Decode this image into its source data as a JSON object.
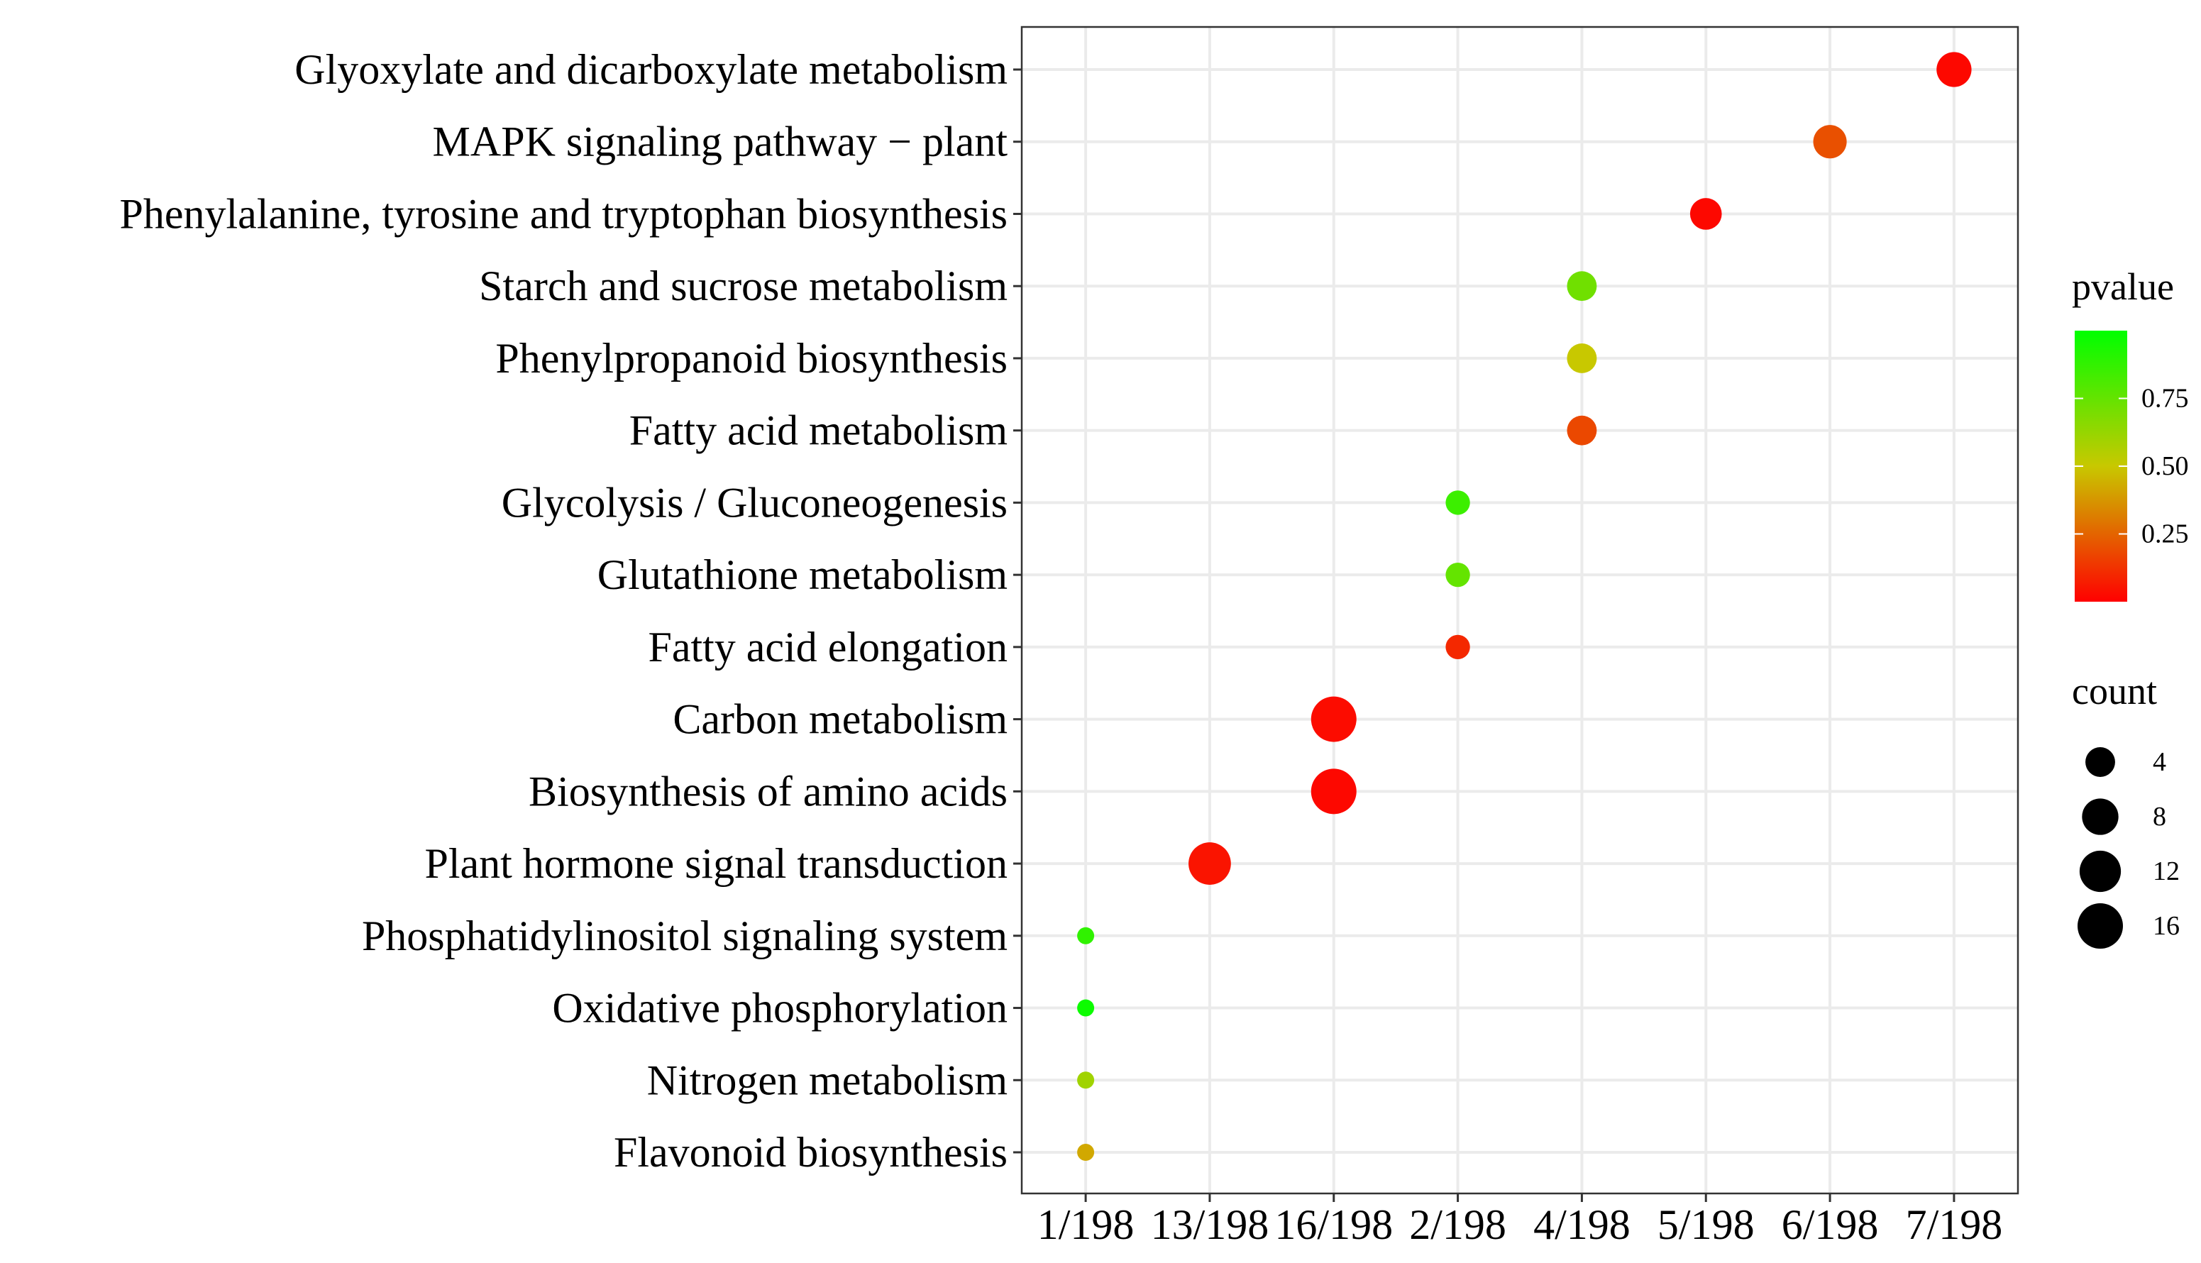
{
  "chart_data": {
    "type": "scatter",
    "x_axis": {
      "type": "categorical",
      "categories": [
        "1/198",
        "13/198",
        "16/198",
        "2/198",
        "4/198",
        "5/198",
        "6/198",
        "7/198"
      ]
    },
    "y_axis": {
      "type": "categorical",
      "categories_top_to_bottom": [
        "Glyoxylate and dicarboxylate metabolism",
        "MAPK signaling pathway − plant",
        "Phenylalanine, tyrosine and tryptophan biosynthesis",
        "Starch and sucrose metabolism",
        "Phenylpropanoid biosynthesis",
        "Fatty acid metabolism",
        "Glycolysis / Gluconeogenesis",
        "Glutathione metabolism",
        "Fatty acid elongation",
        "Carbon metabolism",
        "Biosynthesis of amino acids",
        "Plant hormone signal transduction",
        "Phosphatidylinositol signaling system",
        "Oxidative phosphorylation",
        "Nitrogen metabolism",
        "Flavonoid biosynthesis"
      ]
    },
    "grid": true,
    "points": [
      {
        "term": "Glyoxylate and dicarboxylate metabolism",
        "x": "7/198",
        "count": 7,
        "pvalue": 0.02
      },
      {
        "term": "MAPK signaling pathway − plant",
        "x": "6/198",
        "count": 6,
        "pvalue": 0.2
      },
      {
        "term": "Phenylalanine, tyrosine and tryptophan biosynthesis",
        "x": "5/198",
        "count": 5,
        "pvalue": 0.02
      },
      {
        "term": "Starch and sucrose metabolism",
        "x": "4/198",
        "count": 4,
        "pvalue": 0.72
      },
      {
        "term": "Phenylpropanoid biosynthesis",
        "x": "4/198",
        "count": 4,
        "pvalue": 0.5
      },
      {
        "term": "Fatty acid metabolism",
        "x": "4/198",
        "count": 4,
        "pvalue": 0.18
      },
      {
        "term": "Glycolysis / Gluconeogenesis",
        "x": "2/198",
        "count": 2,
        "pvalue": 0.85
      },
      {
        "term": "Glutathione metabolism",
        "x": "2/198",
        "count": 2,
        "pvalue": 0.75
      },
      {
        "term": "Fatty acid elongation",
        "x": "2/198",
        "count": 2,
        "pvalue": 0.1
      },
      {
        "term": "Carbon metabolism",
        "x": "16/198",
        "count": 16,
        "pvalue": 0.03
      },
      {
        "term": "Biosynthesis of amino acids",
        "x": "16/198",
        "count": 16,
        "pvalue": 0.02
      },
      {
        "term": "Plant hormone signal transduction",
        "x": "13/198",
        "count": 13,
        "pvalue": 0.05
      },
      {
        "term": "Phosphatidylinositol signaling system",
        "x": "1/198",
        "count": 1,
        "pvalue": 0.88
      },
      {
        "term": "Oxidative phosphorylation",
        "x": "1/198",
        "count": 1,
        "pvalue": 0.97
      },
      {
        "term": "Nitrogen metabolism",
        "x": "1/198",
        "count": 1,
        "pvalue": 0.6
      },
      {
        "term": "Flavonoid biosynthesis",
        "x": "1/198",
        "count": 1,
        "pvalue": 0.42
      }
    ],
    "color_legend": {
      "title": "pvalue",
      "ticks": [
        {
          "value": 0.25,
          "label": "0.25"
        },
        {
          "value": 0.5,
          "label": "0.50"
        },
        {
          "value": 0.75,
          "label": "0.75"
        }
      ],
      "range": [
        0.0,
        1.0
      ],
      "low_color": "#ff0000",
      "mid_color": "#c8c800",
      "high_color": "#00ff00",
      "placement": "right"
    },
    "size_legend": {
      "title": "count",
      "entries": [
        {
          "value": 4,
          "label": "4"
        },
        {
          "value": 8,
          "label": "8"
        },
        {
          "value": 12,
          "label": "12"
        },
        {
          "value": 16,
          "label": "16"
        }
      ],
      "placement": "right"
    },
    "colors": {
      "gridline": "#ebebeb",
      "panel_border": "#333333",
      "legend_dot": "#000000"
    }
  }
}
